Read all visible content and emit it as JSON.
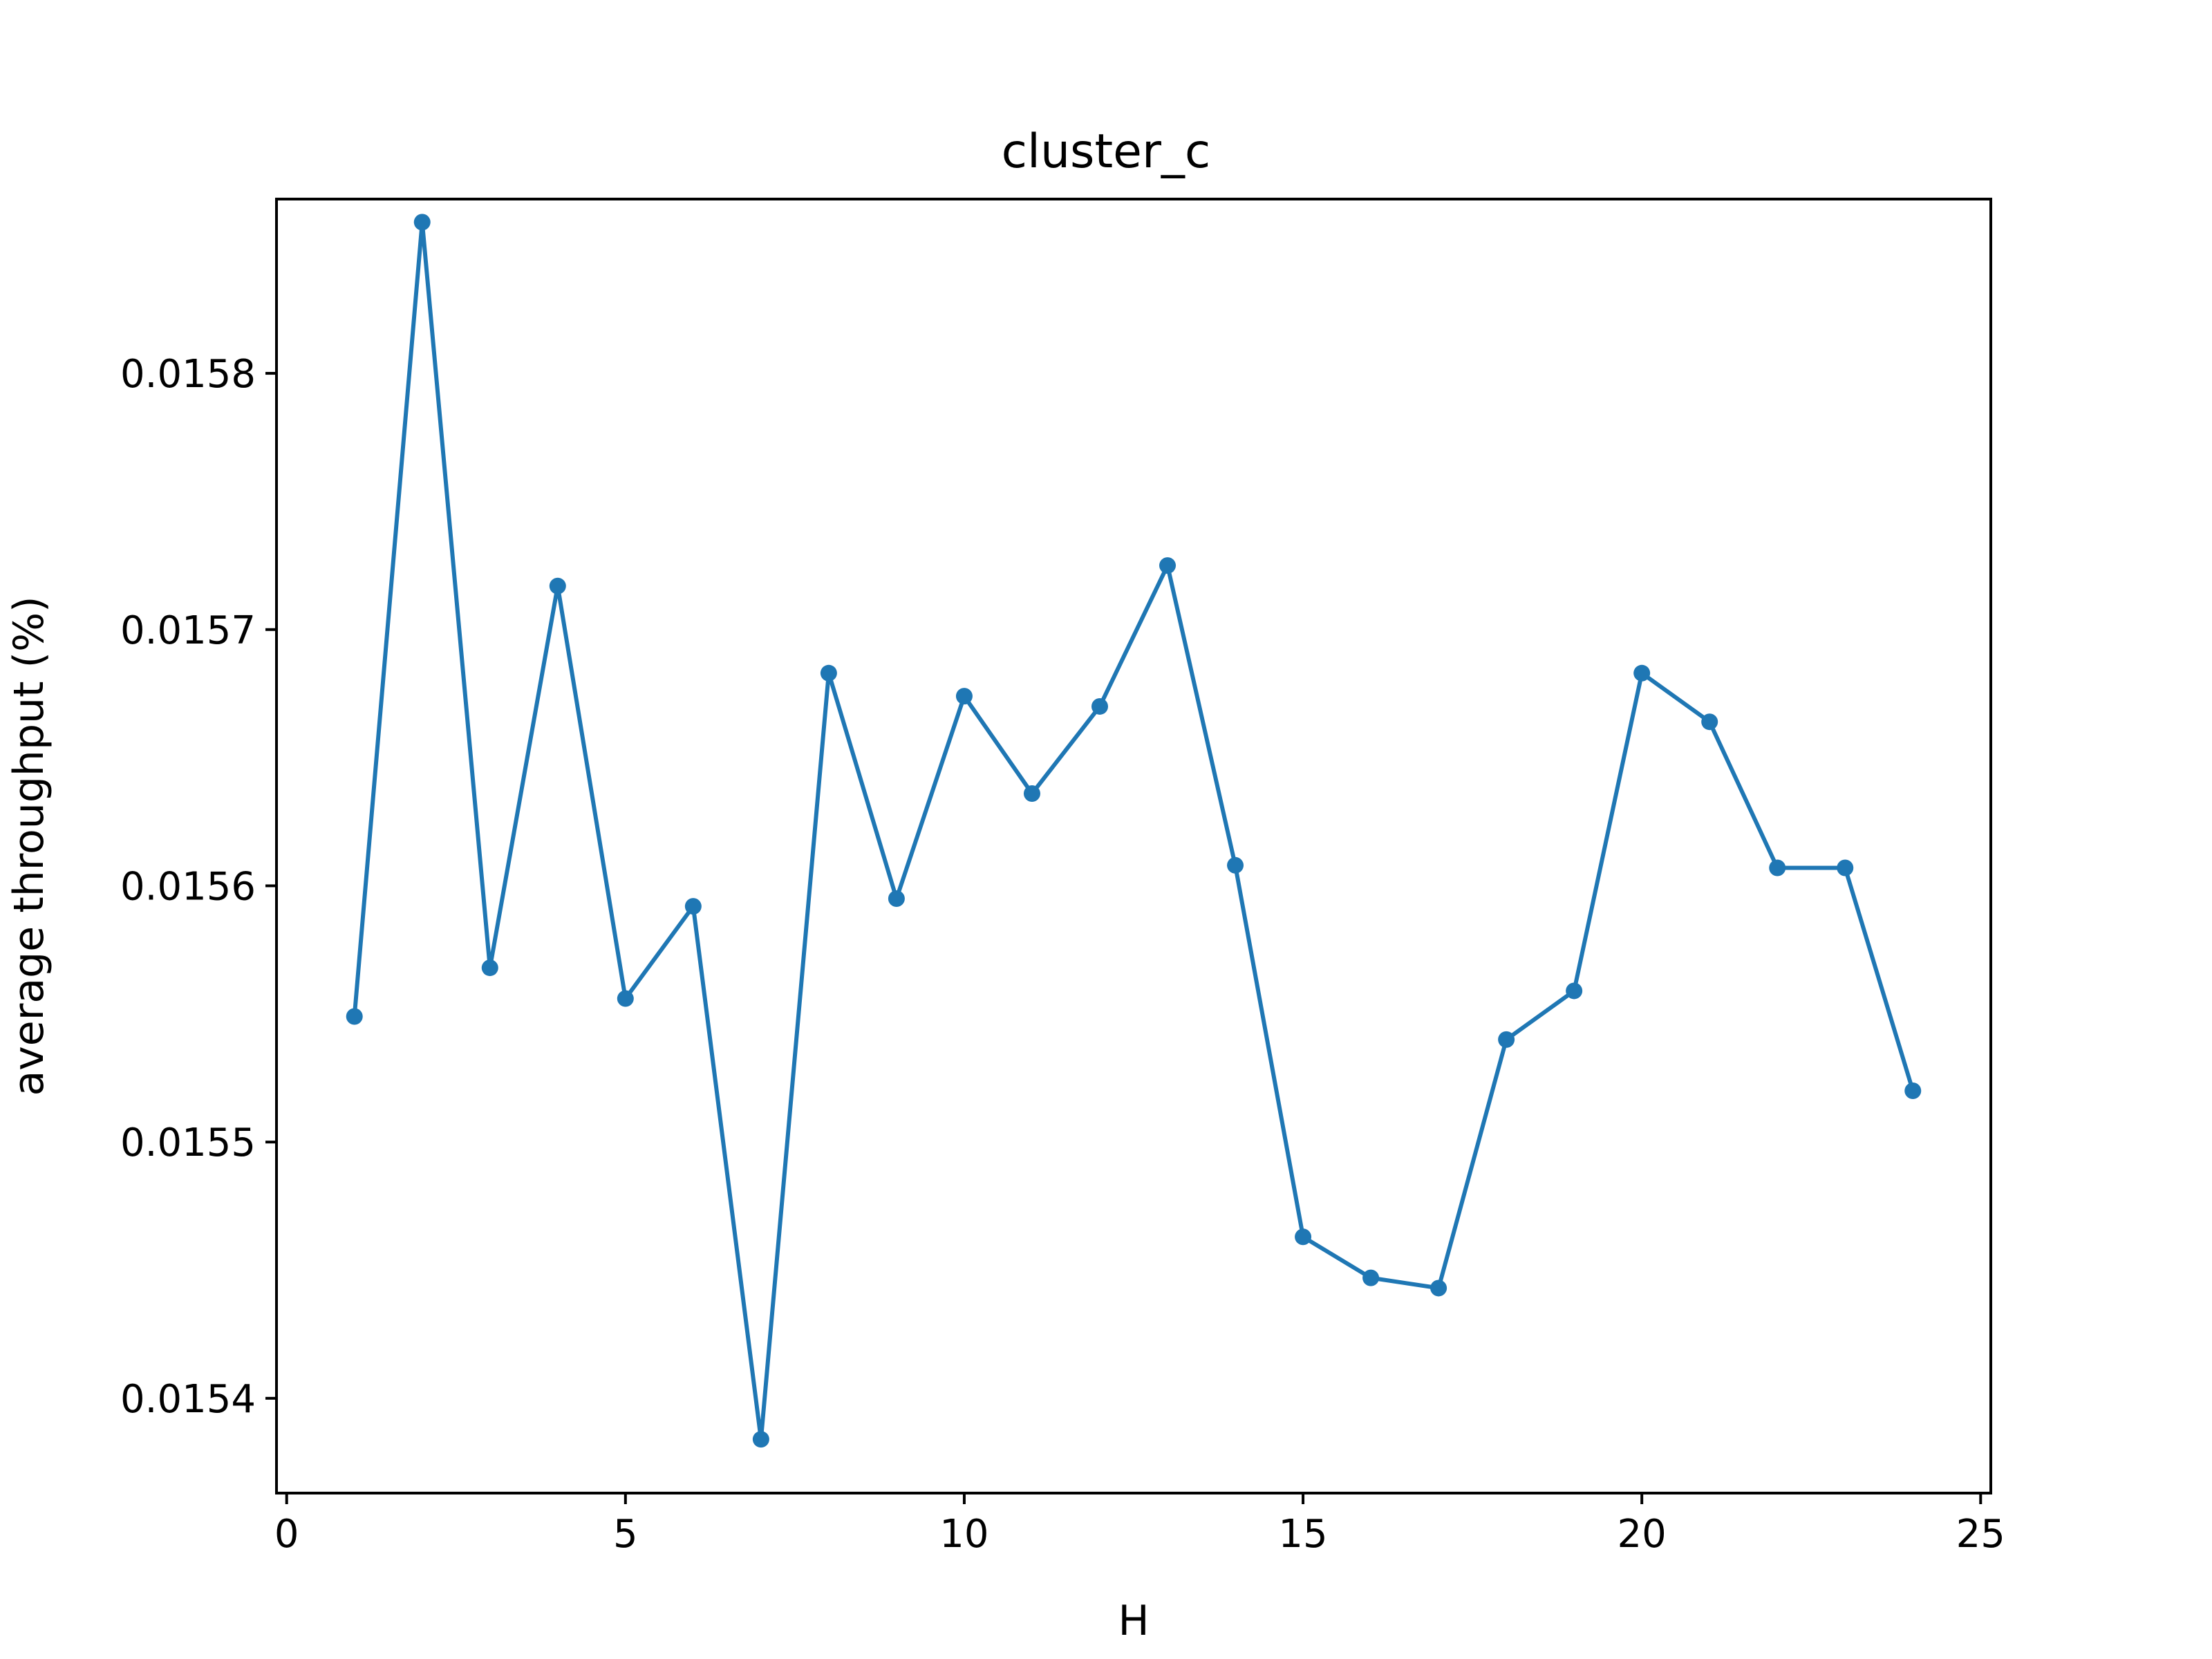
{
  "chart_data": {
    "type": "line",
    "title": "cluster_c",
    "xlabel": "H",
    "ylabel": "average throughput (%)",
    "xlim": [
      -0.15,
      25.15
    ],
    "ylim": [
      0.015363,
      0.015868
    ],
    "xticks": [
      0,
      5,
      10,
      15,
      20,
      25
    ],
    "yticks": [
      0.0154,
      0.0155,
      0.0156,
      0.0157,
      0.0158
    ],
    "grid": false,
    "legend": "none",
    "color": "#1f77b4",
    "x": [
      1,
      2,
      3,
      4,
      5,
      6,
      7,
      8,
      9,
      10,
      11,
      12,
      13,
      14,
      15,
      16,
      17,
      18,
      19,
      20,
      21,
      22,
      23,
      24
    ],
    "y": [
      0.015549,
      0.015859,
      0.015568,
      0.015717,
      0.015556,
      0.015592,
      0.015384,
      0.015683,
      0.015595,
      0.015674,
      0.015636,
      0.01567,
      0.015725,
      0.015608,
      0.015463,
      0.015447,
      0.015443,
      0.01554,
      0.015559,
      0.015683,
      0.015664,
      0.015607,
      0.015607,
      0.01552
    ]
  }
}
